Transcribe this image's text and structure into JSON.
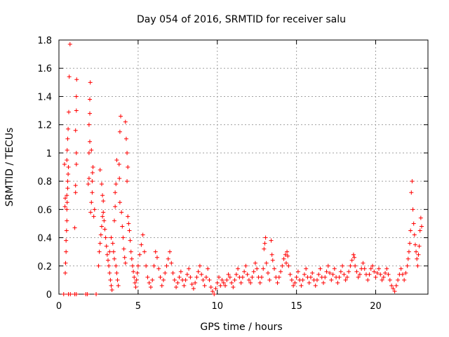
{
  "chart_data": {
    "type": "scatter",
    "title": "Day 054 of 2016, SRMTID for receiver salu",
    "xlabel": "GPS time / hours",
    "ylabel": "SRMTID / TECUs",
    "xlim": [
      0,
      23.3
    ],
    "ylim": [
      0,
      1.8
    ],
    "xticks": [
      0,
      5,
      10,
      15,
      20
    ],
    "xtick_labels": [
      "0",
      "5",
      "10",
      "15",
      "20"
    ],
    "yticks": [
      0,
      0.2,
      0.4,
      0.6,
      0.8,
      1,
      1.2,
      1.4,
      1.6,
      1.8
    ],
    "ytick_labels": [
      "0",
      "0.2",
      "0.4",
      "0.6",
      "0.8",
      "1",
      "1.2",
      "1.4",
      "1.6",
      "1.8"
    ],
    "grid": true,
    "marker": "plus",
    "color": "#ff0000",
    "series": [
      {
        "name": "SRMTID",
        "points": [
          [
            0.3,
            0.0
          ],
          [
            0.4,
            0.15
          ],
          [
            0.42,
            0.22
          ],
          [
            0.45,
            0.3
          ],
          [
            0.45,
            0.38
          ],
          [
            0.48,
            0.45
          ],
          [
            0.5,
            0.52
          ],
          [
            0.5,
            0.6
          ],
          [
            0.52,
            0.65
          ],
          [
            0.5,
            0.7
          ],
          [
            0.55,
            0.75
          ],
          [
            0.55,
            0.8
          ],
          [
            0.58,
            0.85
          ],
          [
            0.6,
            0.9
          ],
          [
            0.5,
            0.95
          ],
          [
            0.52,
            1.02
          ],
          [
            0.55,
            1.1
          ],
          [
            0.58,
            1.17
          ],
          [
            0.62,
            1.29
          ],
          [
            0.65,
            1.54
          ],
          [
            0.7,
            1.77
          ],
          [
            0.35,
            0.92
          ],
          [
            0.38,
            0.62
          ],
          [
            0.4,
            0.68
          ],
          [
            0.6,
            0.0
          ],
          [
            0.72,
            0.0
          ],
          [
            1.0,
            0.47
          ],
          [
            1.05,
            0.72
          ],
          [
            1.05,
            0.77
          ],
          [
            1.1,
            0.92
          ],
          [
            1.1,
            1.0
          ],
          [
            1.05,
            1.16
          ],
          [
            1.1,
            1.3
          ],
          [
            1.1,
            1.4
          ],
          [
            1.12,
            1.52
          ],
          [
            1.0,
            0.0
          ],
          [
            1.1,
            0.0
          ],
          [
            1.7,
            0.0
          ],
          [
            1.8,
            0.0
          ],
          [
            1.85,
            0.78
          ],
          [
            1.9,
            0.82
          ],
          [
            1.9,
            1.0
          ],
          [
            1.95,
            1.08
          ],
          [
            1.9,
            1.2
          ],
          [
            1.95,
            1.28
          ],
          [
            1.95,
            1.38
          ],
          [
            1.98,
            1.5
          ],
          [
            2.0,
            0.58
          ],
          [
            2.05,
            0.65
          ],
          [
            2.1,
            0.72
          ],
          [
            2.1,
            0.8
          ],
          [
            2.12,
            0.86
          ],
          [
            2.15,
            0.9
          ],
          [
            2.05,
            1.02
          ],
          [
            2.2,
            0.55
          ],
          [
            2.25,
            0.6
          ],
          [
            2.35,
            0.0
          ],
          [
            2.5,
            0.2
          ],
          [
            2.55,
            0.3
          ],
          [
            2.6,
            0.36
          ],
          [
            2.65,
            0.42
          ],
          [
            2.7,
            0.48
          ],
          [
            2.75,
            0.55
          ],
          [
            2.8,
            0.58
          ],
          [
            2.85,
            0.52
          ],
          [
            2.9,
            0.46
          ],
          [
            2.95,
            0.4
          ],
          [
            2.6,
            0.88
          ],
          [
            2.7,
            0.78
          ],
          [
            2.75,
            0.7
          ],
          [
            2.8,
            0.66
          ],
          [
            3.0,
            0.34
          ],
          [
            3.05,
            0.28
          ],
          [
            3.1,
            0.24
          ],
          [
            3.15,
            0.2
          ],
          [
            3.2,
            0.15
          ],
          [
            3.25,
            0.1
          ],
          [
            3.3,
            0.06
          ],
          [
            3.35,
            0.03
          ],
          [
            3.2,
            0.3
          ],
          [
            3.3,
            0.4
          ],
          [
            3.4,
            0.36
          ],
          [
            3.45,
            0.3
          ],
          [
            3.5,
            0.25
          ],
          [
            3.5,
            0.52
          ],
          [
            3.55,
            0.62
          ],
          [
            3.55,
            0.72
          ],
          [
            3.6,
            0.78
          ],
          [
            3.65,
            0.95
          ],
          [
            3.6,
            0.2
          ],
          [
            3.65,
            0.15
          ],
          [
            3.7,
            0.1
          ],
          [
            3.75,
            0.06
          ],
          [
            3.8,
            0.92
          ],
          [
            3.82,
            0.82
          ],
          [
            3.85,
            0.65
          ],
          [
            3.85,
            1.15
          ],
          [
            3.9,
            1.26
          ],
          [
            3.95,
            0.58
          ],
          [
            4.0,
            0.48
          ],
          [
            4.05,
            0.4
          ],
          [
            4.1,
            0.32
          ],
          [
            4.15,
            0.26
          ],
          [
            4.2,
            0.22
          ],
          [
            4.2,
            1.22
          ],
          [
            4.25,
            1.1
          ],
          [
            4.3,
            1.0
          ],
          [
            4.3,
            0.8
          ],
          [
            4.35,
            0.9
          ],
          [
            4.35,
            0.55
          ],
          [
            4.4,
            0.5
          ],
          [
            4.45,
            0.45
          ],
          [
            4.5,
            0.38
          ],
          [
            4.55,
            0.3
          ],
          [
            4.6,
            0.25
          ],
          [
            4.65,
            0.2
          ],
          [
            4.7,
            0.16
          ],
          [
            4.75,
            0.12
          ],
          [
            4.8,
            0.08
          ],
          [
            4.85,
            0.05
          ],
          [
            4.9,
            0.1
          ],
          [
            4.95,
            0.15
          ],
          [
            5.0,
            0.2
          ],
          [
            5.1,
            0.28
          ],
          [
            5.2,
            0.35
          ],
          [
            5.3,
            0.42
          ],
          [
            5.4,
            0.3
          ],
          [
            5.5,
            0.2
          ],
          [
            5.6,
            0.12
          ],
          [
            5.7,
            0.08
          ],
          [
            5.8,
            0.05
          ],
          [
            5.9,
            0.1
          ],
          [
            6.0,
            0.2
          ],
          [
            6.1,
            0.3
          ],
          [
            6.2,
            0.26
          ],
          [
            6.3,
            0.18
          ],
          [
            6.4,
            0.12
          ],
          [
            6.5,
            0.06
          ],
          [
            6.6,
            0.1
          ],
          [
            6.7,
            0.15
          ],
          [
            6.8,
            0.2
          ],
          [
            6.9,
            0.25
          ],
          [
            7.0,
            0.3
          ],
          [
            7.1,
            0.22
          ],
          [
            7.2,
            0.15
          ],
          [
            7.3,
            0.1
          ],
          [
            7.4,
            0.05
          ],
          [
            7.5,
            0.08
          ],
          [
            7.6,
            0.12
          ],
          [
            7.7,
            0.16
          ],
          [
            7.8,
            0.1
          ],
          [
            7.9,
            0.06
          ],
          [
            8.0,
            0.1
          ],
          [
            8.1,
            0.14
          ],
          [
            8.2,
            0.18
          ],
          [
            8.3,
            0.12
          ],
          [
            8.4,
            0.07
          ],
          [
            8.5,
            0.04
          ],
          [
            8.6,
            0.08
          ],
          [
            8.7,
            0.12
          ],
          [
            8.8,
            0.16
          ],
          [
            8.9,
            0.2
          ],
          [
            9.0,
            0.14
          ],
          [
            9.1,
            0.1
          ],
          [
            9.2,
            0.06
          ],
          [
            9.3,
            0.12
          ],
          [
            9.4,
            0.18
          ],
          [
            9.5,
            0.1
          ],
          [
            9.6,
            0.05
          ],
          [
            9.7,
            0.02
          ],
          [
            9.8,
            0.0
          ],
          [
            9.9,
            0.04
          ],
          [
            10.0,
            0.08
          ],
          [
            10.1,
            0.12
          ],
          [
            10.2,
            0.06
          ],
          [
            10.3,
            0.1
          ],
          [
            10.4,
            0.08
          ],
          [
            10.5,
            0.06
          ],
          [
            10.6,
            0.1
          ],
          [
            10.7,
            0.14
          ],
          [
            10.8,
            0.12
          ],
          [
            10.9,
            0.08
          ],
          [
            11.0,
            0.05
          ],
          [
            11.1,
            0.1
          ],
          [
            11.2,
            0.14
          ],
          [
            11.3,
            0.18
          ],
          [
            11.4,
            0.12
          ],
          [
            11.5,
            0.08
          ],
          [
            11.6,
            0.12
          ],
          [
            11.7,
            0.16
          ],
          [
            11.8,
            0.2
          ],
          [
            11.9,
            0.14
          ],
          [
            12.0,
            0.1
          ],
          [
            12.1,
            0.08
          ],
          [
            12.2,
            0.12
          ],
          [
            12.3,
            0.16
          ],
          [
            12.4,
            0.22
          ],
          [
            12.5,
            0.18
          ],
          [
            12.6,
            0.12
          ],
          [
            12.7,
            0.08
          ],
          [
            12.8,
            0.12
          ],
          [
            12.9,
            0.18
          ],
          [
            12.95,
            0.32
          ],
          [
            13.0,
            0.36
          ],
          [
            13.05,
            0.4
          ],
          [
            13.1,
            0.22
          ],
          [
            13.2,
            0.15
          ],
          [
            13.3,
            0.1
          ],
          [
            13.4,
            0.38
          ],
          [
            13.45,
            0.28
          ],
          [
            13.5,
            0.24
          ],
          [
            13.6,
            0.18
          ],
          [
            13.7,
            0.12
          ],
          [
            13.8,
            0.08
          ],
          [
            13.9,
            0.12
          ],
          [
            14.0,
            0.16
          ],
          [
            14.1,
            0.2
          ],
          [
            14.2,
            0.25
          ],
          [
            14.3,
            0.28
          ],
          [
            14.35,
            0.22
          ],
          [
            14.4,
            0.3
          ],
          [
            14.45,
            0.27
          ],
          [
            14.5,
            0.2
          ],
          [
            14.6,
            0.14
          ],
          [
            14.7,
            0.1
          ],
          [
            14.8,
            0.06
          ],
          [
            14.9,
            0.08
          ],
          [
            15.0,
            0.12
          ],
          [
            15.1,
            0.16
          ],
          [
            15.2,
            0.1
          ],
          [
            15.3,
            0.06
          ],
          [
            15.4,
            0.1
          ],
          [
            15.5,
            0.14
          ],
          [
            15.6,
            0.18
          ],
          [
            15.7,
            0.12
          ],
          [
            15.8,
            0.08
          ],
          [
            15.9,
            0.12
          ],
          [
            16.0,
            0.15
          ],
          [
            16.1,
            0.1
          ],
          [
            16.2,
            0.06
          ],
          [
            16.3,
            0.1
          ],
          [
            16.4,
            0.14
          ],
          [
            16.5,
            0.18
          ],
          [
            16.6,
            0.12
          ],
          [
            16.7,
            0.08
          ],
          [
            16.8,
            0.12
          ],
          [
            16.9,
            0.16
          ],
          [
            17.0,
            0.2
          ],
          [
            17.1,
            0.15
          ],
          [
            17.2,
            0.1
          ],
          [
            17.3,
            0.14
          ],
          [
            17.4,
            0.18
          ],
          [
            17.5,
            0.12
          ],
          [
            17.6,
            0.08
          ],
          [
            17.7,
            0.12
          ],
          [
            17.8,
            0.16
          ],
          [
            17.9,
            0.2
          ],
          [
            18.0,
            0.14
          ],
          [
            18.1,
            0.1
          ],
          [
            18.2,
            0.12
          ],
          [
            18.3,
            0.16
          ],
          [
            18.4,
            0.2
          ],
          [
            18.5,
            0.24
          ],
          [
            18.6,
            0.28
          ],
          [
            18.65,
            0.26
          ],
          [
            18.7,
            0.2
          ],
          [
            18.8,
            0.16
          ],
          [
            18.9,
            0.12
          ],
          [
            19.0,
            0.14
          ],
          [
            19.1,
            0.18
          ],
          [
            19.2,
            0.22
          ],
          [
            19.3,
            0.18
          ],
          [
            19.4,
            0.14
          ],
          [
            19.5,
            0.1
          ],
          [
            19.6,
            0.14
          ],
          [
            19.7,
            0.18
          ],
          [
            19.8,
            0.2
          ],
          [
            19.9,
            0.16
          ],
          [
            20.0,
            0.12
          ],
          [
            20.1,
            0.15
          ],
          [
            20.2,
            0.18
          ],
          [
            20.3,
            0.14
          ],
          [
            20.4,
            0.1
          ],
          [
            20.5,
            0.12
          ],
          [
            20.6,
            0.15
          ],
          [
            20.7,
            0.18
          ],
          [
            20.8,
            0.14
          ],
          [
            20.9,
            0.1
          ],
          [
            21.0,
            0.06
          ],
          [
            21.1,
            0.04
          ],
          [
            21.2,
            0.02
          ],
          [
            21.3,
            0.06
          ],
          [
            21.4,
            0.1
          ],
          [
            21.5,
            0.14
          ],
          [
            21.6,
            0.18
          ],
          [
            21.7,
            0.14
          ],
          [
            21.8,
            0.1
          ],
          [
            21.9,
            0.15
          ],
          [
            22.0,
            0.2
          ],
          [
            22.05,
            0.25
          ],
          [
            22.1,
            0.3
          ],
          [
            22.15,
            0.36
          ],
          [
            22.2,
            0.45
          ],
          [
            22.25,
            0.72
          ],
          [
            22.3,
            0.8
          ],
          [
            22.35,
            0.6
          ],
          [
            22.4,
            0.5
          ],
          [
            22.45,
            0.42
          ],
          [
            22.5,
            0.35
          ],
          [
            22.55,
            0.3
          ],
          [
            22.6,
            0.25
          ],
          [
            22.65,
            0.2
          ],
          [
            22.7,
            0.28
          ],
          [
            22.75,
            0.34
          ],
          [
            22.8,
            0.45
          ],
          [
            22.85,
            0.54
          ],
          [
            22.9,
            0.48
          ]
        ]
      }
    ]
  }
}
